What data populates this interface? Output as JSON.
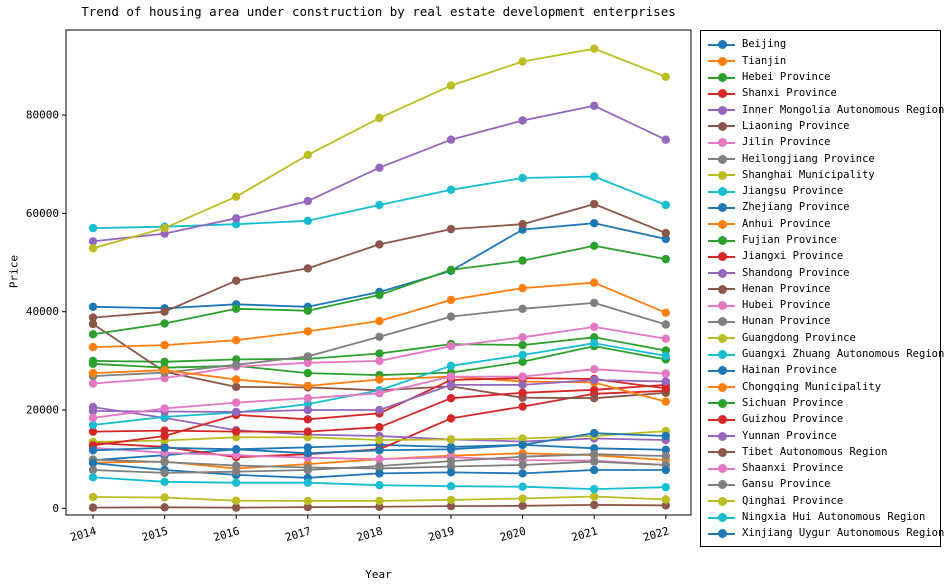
{
  "figure": {
    "title": "Trend of housing area under construction by real estate development enterprises",
    "xlabel": "Year",
    "ylabel": "Price"
  },
  "chart_data": {
    "type": "line",
    "title": "Trend of housing area under construction by real estate development enterprises",
    "xlabel": "Year",
    "ylabel": "Price",
    "x": [
      2014,
      2015,
      2016,
      2017,
      2018,
      2019,
      2020,
      2021,
      2022
    ],
    "x_tick_labels": [
      "2014",
      "2015",
      "2016",
      "2017",
      "2018",
      "2019",
      "2020",
      "2021",
      "2022"
    ],
    "y_ticks": [
      0,
      20000,
      40000,
      60000,
      80000
    ],
    "y_tick_labels": [
      "0",
      "20000",
      "40000",
      "60000",
      "80000"
    ],
    "ylim": [
      -3000,
      98000
    ],
    "grid": false,
    "legend_position": "outside-right",
    "marker": "circle",
    "series": [
      {
        "name": "Beijing",
        "color": "#1f77b4",
        "values": [
          9800,
          10800,
          12000,
          12400,
          12900,
          12500,
          12900,
          12200,
          11900
        ]
      },
      {
        "name": "Tianjin",
        "color": "#ff7f0e",
        "values": [
          9300,
          9500,
          8100,
          9000,
          10000,
          10700,
          11200,
          10800,
          9800
        ]
      },
      {
        "name": "Hebei Province",
        "color": "#2ca02c",
        "values": [
          30000,
          29800,
          30300,
          30400,
          31500,
          33400,
          33200,
          34800,
          32100
        ]
      },
      {
        "name": "Shanxi Province",
        "color": "#d62728",
        "values": [
          13300,
          12500,
          10400,
          11000,
          12000,
          18300,
          20700,
          23300,
          23900
        ]
      },
      {
        "name": "Inner Mongolia Autonomous Region",
        "color": "#9467bd",
        "values": [
          20600,
          18400,
          15900,
          15000,
          14700,
          14000,
          13600,
          14200,
          13900
        ]
      },
      {
        "name": "Liaoning Province",
        "color": "#8c564b",
        "values": [
          37500,
          27800,
          24700,
          24600,
          24000,
          24800,
          22500,
          22400,
          23500
        ]
      },
      {
        "name": "Jilin Province",
        "color": "#e377c2",
        "values": [
          12300,
          11300,
          10800,
          10300,
          10000,
          10400,
          9800,
          9700,
          8800
        ]
      },
      {
        "name": "Heilongjiang Province",
        "color": "#7f7f7f",
        "values": [
          9900,
          9400,
          8700,
          8300,
          8100,
          8500,
          8800,
          9500,
          8800
        ]
      },
      {
        "name": "Shanghai Municipality",
        "color": "#bcbd22",
        "values": [
          13500,
          13800,
          14450,
          14450,
          13900,
          14000,
          14200,
          14700,
          15700
        ]
      },
      {
        "name": "Jiangsu Province",
        "color": "#17becf",
        "values": [
          57000,
          57300,
          57800,
          58500,
          61700,
          64800,
          67200,
          67500,
          61700
        ]
      },
      {
        "name": "Zhejiang Province",
        "color": "#1f77b4",
        "values": [
          41000,
          40700,
          41500,
          41000,
          44000,
          48300,
          56700,
          58000,
          54800
        ]
      },
      {
        "name": "Anhui Province",
        "color": "#ff7f0e",
        "values": [
          32800,
          33200,
          34200,
          36000,
          38100,
          42400,
          44800,
          45900,
          39800
        ]
      },
      {
        "name": "Fujian Province",
        "color": "#2ca02c",
        "values": [
          29400,
          28600,
          29000,
          27500,
          27100,
          27600,
          29800,
          33000,
          30300
        ]
      },
      {
        "name": "Jiangxi Province",
        "color": "#d62728",
        "values": [
          15600,
          15800,
          15600,
          15600,
          16500,
          22400,
          23500,
          24100,
          25100
        ]
      },
      {
        "name": "Shandong Province",
        "color": "#9467bd",
        "values": [
          54300,
          55900,
          59000,
          62500,
          69300,
          75000,
          78900,
          81900,
          75000
        ]
      },
      {
        "name": "Henan Province",
        "color": "#8c564b",
        "values": [
          38800,
          40000,
          46300,
          48800,
          53700,
          56800,
          57800,
          61900,
          56000
        ]
      },
      {
        "name": "Hubei Province",
        "color": "#e377c2",
        "values": [
          25400,
          26500,
          28800,
          29600,
          30000,
          33000,
          34800,
          36900,
          34500
        ]
      },
      {
        "name": "Hunan Province",
        "color": "#7f7f7f",
        "values": [
          26900,
          27600,
          29200,
          30900,
          34900,
          39000,
          40600,
          41800,
          37400
        ]
      },
      {
        "name": "Guangdong Province",
        "color": "#bcbd22",
        "values": [
          52900,
          57000,
          63400,
          71900,
          79400,
          86000,
          90900,
          93500,
          87800
        ]
      },
      {
        "name": "Guangxi Zhuang Autonomous Region",
        "color": "#17becf",
        "values": [
          16950,
          18600,
          19500,
          21200,
          24000,
          29000,
          31200,
          33600,
          31000
        ]
      },
      {
        "name": "Hainan Province",
        "color": "#1f77b4",
        "values": [
          9200,
          7800,
          6800,
          6200,
          7100,
          7300,
          7100,
          7800,
          7800
        ]
      },
      {
        "name": "Chongqing Municipality",
        "color": "#ff7f0e",
        "values": [
          27500,
          28100,
          26200,
          24900,
          26200,
          26800,
          25800,
          25600,
          21700
        ]
      },
      {
        "name": "Sichuan Province",
        "color": "#2ca02c",
        "values": [
          35400,
          37600,
          40600,
          40200,
          43400,
          48500,
          50400,
          53400,
          50700
        ]
      },
      {
        "name": "Guizhou Province",
        "color": "#d62728",
        "values": [
          12800,
          14700,
          19000,
          18100,
          19300,
          26100,
          26500,
          26300,
          24400
        ]
      },
      {
        "name": "Yunnan Province",
        "color": "#9467bd",
        "values": [
          19800,
          19700,
          19600,
          20000,
          20000,
          25100,
          25100,
          26100,
          25800
        ]
      },
      {
        "name": "Tibet Autonomous Region",
        "color": "#8c564b",
        "values": [
          150,
          200,
          150,
          250,
          300,
          450,
          500,
          700,
          600
        ]
      },
      {
        "name": "Shaanxi Province",
        "color": "#e377c2",
        "values": [
          18400,
          20300,
          21500,
          22400,
          23400,
          26800,
          26800,
          28300,
          27400
        ]
      },
      {
        "name": "Gansu Province",
        "color": "#7f7f7f",
        "values": [
          7800,
          7200,
          7450,
          7800,
          8600,
          9600,
          10500,
          11000,
          10650
        ]
      },
      {
        "name": "Qinghai Province",
        "color": "#bcbd22",
        "values": [
          2300,
          2200,
          1550,
          1500,
          1500,
          1700,
          2000,
          2400,
          1800
        ]
      },
      {
        "name": "Ningxia Hui Autonomous Region",
        "color": "#17becf",
        "values": [
          6300,
          5400,
          5200,
          5200,
          4700,
          4500,
          4400,
          3900,
          4300
        ]
      },
      {
        "name": "Xinjiang Uygur Autonomous Region",
        "color": "#1f77b4",
        "values": [
          11800,
          12300,
          12000,
          11200,
          11800,
          12000,
          12900,
          15300,
          14700
        ]
      }
    ]
  }
}
